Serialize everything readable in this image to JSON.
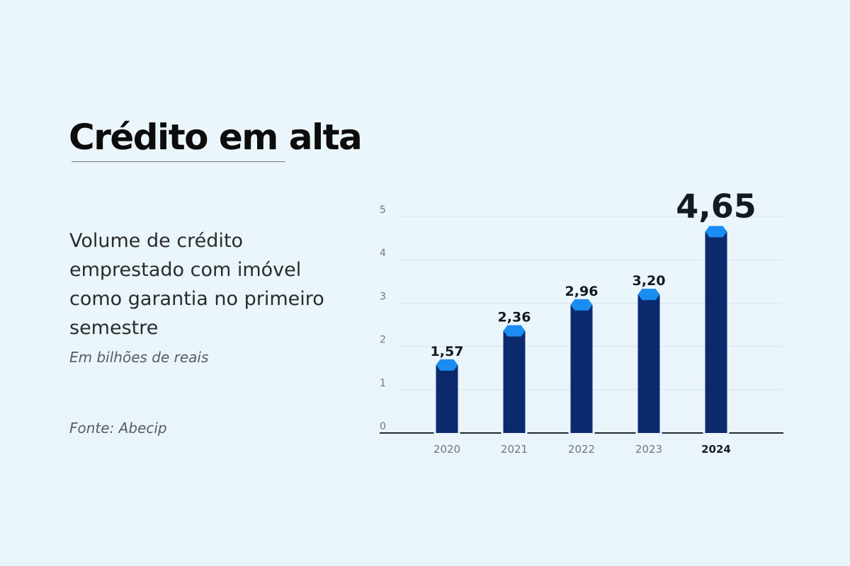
{
  "header": {
    "title": "Crédito em alta"
  },
  "description": {
    "subtitle": "Volume de crédito emprestado com imóvel como garantia no primeiro semestre",
    "unit": "Em bilhões de reais",
    "source": "Fonte: Abecip"
  },
  "colors": {
    "bar": "#0b2a6e",
    "bar_top": "#1a8cf2",
    "grid": "#d6e4ee",
    "axis": "#222a33",
    "tick_text": "#6f7780",
    "label_text": "#141a22"
  },
  "chart_data": {
    "type": "bar",
    "title": "Crédito em alta",
    "xlabel": "",
    "ylabel": "",
    "categories": [
      "2020",
      "2021",
      "2022",
      "2023",
      "2024"
    ],
    "values": [
      1.57,
      2.36,
      2.96,
      3.2,
      4.65
    ],
    "value_labels": [
      "1,57",
      "2,36",
      "2,96",
      "3,20",
      "4,65"
    ],
    "highlight": "2024",
    "yticks": [
      0,
      1,
      2,
      3,
      4,
      5
    ],
    "ylim": [
      0,
      5
    ],
    "grid": true,
    "legend": "none"
  }
}
